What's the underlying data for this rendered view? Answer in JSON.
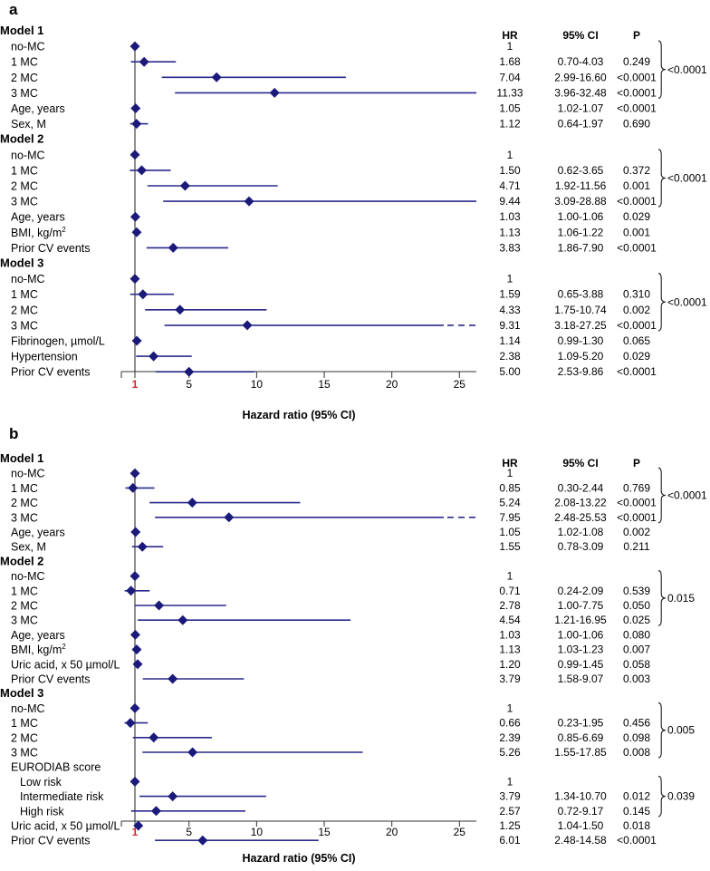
{
  "chart_data": [
    {
      "type": "forest",
      "panel": "a",
      "colors": {
        "marker": "#1b1a7a",
        "line": "#2a2a8c",
        "axis": "#333333",
        "one_tick": "#d42a2a"
      },
      "columns": {
        "hr": "HR",
        "ci": "95% CI",
        "p": "P"
      },
      "xlabel": "Hazard ratio (95% CI)",
      "xlim": [
        0.1,
        26
      ],
      "ticks": [
        {
          "v": 1,
          "label": "1"
        },
        {
          "v": 5,
          "label": "5"
        },
        {
          "v": 10,
          "label": "10"
        },
        {
          "v": 15,
          "label": "15"
        },
        {
          "v": 20,
          "label": "20"
        },
        {
          "v": 25,
          "label": "25"
        }
      ],
      "rows": [
        {
          "kind": "model",
          "label": "Model 1"
        },
        {
          "kind": "row",
          "label": "no-MC",
          "hr": 1,
          "hr_text": "1",
          "ci_text": "",
          "p_text": ""
        },
        {
          "kind": "row",
          "label": "1 MC",
          "hr": 1.68,
          "lo": 0.7,
          "hi": 4.03,
          "hr_text": "1.68",
          "ci_text": "0.70-4.03",
          "p_text": "0.249"
        },
        {
          "kind": "row",
          "label": "2 MC",
          "hr": 7.04,
          "lo": 2.99,
          "hi": 16.6,
          "hr_text": "7.04",
          "ci_text": "2.99-16.60",
          "p_text": "<0.0001"
        },
        {
          "kind": "row",
          "label": "3 MC",
          "hr": 11.33,
          "lo": 3.96,
          "hi": 32.48,
          "hr_text": "11.33",
          "ci_text": "3.96-32.48",
          "p_text": "<0.0001"
        },
        {
          "kind": "row",
          "label": "Age, years",
          "hr": 1.05,
          "lo": 1.02,
          "hi": 1.07,
          "hr_text": "1.05",
          "ci_text": "1.02-1.07",
          "p_text": "<0.0001"
        },
        {
          "kind": "row",
          "label": "Sex, M",
          "hr": 1.12,
          "lo": 0.64,
          "hi": 1.97,
          "hr_text": "1.12",
          "ci_text": "0.64-1.97",
          "p_text": "0.690"
        },
        {
          "kind": "model",
          "label": "Model 2"
        },
        {
          "kind": "row",
          "label": "no-MC",
          "hr": 1,
          "hr_text": "1",
          "ci_text": "",
          "p_text": ""
        },
        {
          "kind": "row",
          "label": "1 MC",
          "hr": 1.5,
          "lo": 0.62,
          "hi": 3.65,
          "hr_text": "1.50",
          "ci_text": "0.62-3.65",
          "p_text": "0.372"
        },
        {
          "kind": "row",
          "label": "2 MC",
          "hr": 4.71,
          "lo": 1.92,
          "hi": 11.56,
          "hr_text": "4.71",
          "ci_text": "1.92-11.56",
          "p_text": "0.001"
        },
        {
          "kind": "row",
          "label": "3 MC",
          "hr": 9.44,
          "lo": 3.09,
          "hi": 28.88,
          "hr_text": "9.44",
          "ci_text": "3.09-28.88",
          "p_text": "<0.0001"
        },
        {
          "kind": "row",
          "label": "Age, years",
          "hr": 1.03,
          "lo": 1.0,
          "hi": 1.06,
          "hr_text": "1.03",
          "ci_text": "1.00-1.06",
          "p_text": "0.029"
        },
        {
          "kind": "row",
          "label": "BMI, kg/m",
          "sup": "2",
          "hr": 1.13,
          "lo": 1.06,
          "hi": 1.22,
          "hr_text": "1.13",
          "ci_text": "1.06-1.22",
          "p_text": "0.001"
        },
        {
          "kind": "row",
          "label": "Prior CV events",
          "hr": 3.83,
          "lo": 1.86,
          "hi": 7.9,
          "hr_text": "3.83",
          "ci_text": "1.86-7.90",
          "p_text": "<0.0001"
        },
        {
          "kind": "model",
          "label": "Model 3"
        },
        {
          "kind": "row",
          "label": "no-MC",
          "hr": 1,
          "hr_text": "1",
          "ci_text": "",
          "p_text": ""
        },
        {
          "kind": "row",
          "label": "1 MC",
          "hr": 1.59,
          "lo": 0.65,
          "hi": 3.88,
          "hr_text": "1.59",
          "ci_text": "0.65-3.88",
          "p_text": "0.310"
        },
        {
          "kind": "row",
          "label": "2 MC",
          "hr": 4.33,
          "lo": 1.75,
          "hi": 10.74,
          "hr_text": "4.33",
          "ci_text": "1.75-10.74",
          "p_text": "0.002"
        },
        {
          "kind": "row",
          "label": "3 MC",
          "hr": 9.31,
          "lo": 3.18,
          "hi": 27.25,
          "hr_text": "9.31",
          "ci_text": "3.18-27.25",
          "p_text": "<0.0001",
          "dashed": true
        },
        {
          "kind": "row",
          "label": "Fibrinogen, µmol/L",
          "hr": 1.14,
          "lo": 0.99,
          "hi": 1.3,
          "hr_text": "1.14",
          "ci_text": "0.99-1.30",
          "p_text": "0.065"
        },
        {
          "kind": "row",
          "label": "Hypertension",
          "hr": 2.38,
          "lo": 1.09,
          "hi": 5.2,
          "hr_text": "2.38",
          "ci_text": "1.09-5.20",
          "p_text": "0.029"
        },
        {
          "kind": "row",
          "label": "Prior CV events",
          "hr": 5.0,
          "lo": 2.53,
          "hi": 9.86,
          "hr_text": "5.00",
          "ci_text": "2.53-9.86",
          "p_text": "<0.0001"
        }
      ],
      "groups": [
        {
          "from": 1,
          "to": 4,
          "p": "<0.0001"
        },
        {
          "from": 8,
          "to": 11,
          "p": "<0.0001"
        },
        {
          "from": 16,
          "to": 19,
          "p": "<0.0001"
        }
      ]
    },
    {
      "type": "forest",
      "panel": "b",
      "colors": {
        "marker": "#1b1a7a",
        "line": "#2a2a8c",
        "axis": "#333333",
        "one_tick": "#d42a2a"
      },
      "columns": {
        "hr": "HR",
        "ci": "95% CI",
        "p": "P"
      },
      "xlabel": "Hazard ratio (95% CI)",
      "xlim": [
        0.1,
        26
      ],
      "ticks": [
        {
          "v": 1,
          "label": "1"
        },
        {
          "v": 5,
          "label": "5"
        },
        {
          "v": 10,
          "label": "10"
        },
        {
          "v": 15,
          "label": "15"
        },
        {
          "v": 20,
          "label": "20"
        },
        {
          "v": 25,
          "label": "25"
        }
      ],
      "rows": [
        {
          "kind": "model",
          "label": "Model 1"
        },
        {
          "kind": "row",
          "label": "no-MC",
          "hr": 1,
          "hr_text": "1",
          "ci_text": "",
          "p_text": ""
        },
        {
          "kind": "row",
          "label": "1 MC",
          "hr": 0.85,
          "lo": 0.3,
          "hi": 2.44,
          "hr_text": "0.85",
          "ci_text": "0.30-2.44",
          "p_text": "0.769"
        },
        {
          "kind": "row",
          "label": "2 MC",
          "hr": 5.24,
          "lo": 2.08,
          "hi": 13.22,
          "hr_text": "5.24",
          "ci_text": "2.08-13.22",
          "p_text": "<0.0001"
        },
        {
          "kind": "row",
          "label": "3 MC",
          "hr": 7.95,
          "lo": 2.48,
          "hi": 25.53,
          "hr_text": "7.95",
          "ci_text": "2.48-25.53",
          "p_text": "<0.0001",
          "dashed": true
        },
        {
          "kind": "row",
          "label": "Age, years",
          "hr": 1.05,
          "lo": 1.02,
          "hi": 1.08,
          "hr_text": "1.05",
          "ci_text": "1.02-1.08",
          "p_text": "0.002"
        },
        {
          "kind": "row",
          "label": "Sex, M",
          "hr": 1.55,
          "lo": 0.78,
          "hi": 3.09,
          "hr_text": "1.55",
          "ci_text": "0.78-3.09",
          "p_text": "0.211"
        },
        {
          "kind": "model",
          "label": "Model 2"
        },
        {
          "kind": "row",
          "label": "no-MC",
          "hr": 1,
          "hr_text": "1",
          "ci_text": "",
          "p_text": ""
        },
        {
          "kind": "row",
          "label": "1 MC",
          "hr": 0.71,
          "lo": 0.24,
          "hi": 2.09,
          "hr_text": "0.71",
          "ci_text": "0.24-2.09",
          "p_text": "0.539"
        },
        {
          "kind": "row",
          "label": "2 MC",
          "hr": 2.78,
          "lo": 1.0,
          "hi": 7.75,
          "hr_text": "2.78",
          "ci_text": "1.00-7.75",
          "p_text": "0.050"
        },
        {
          "kind": "row",
          "label": "3 MC",
          "hr": 4.54,
          "lo": 1.21,
          "hi": 16.95,
          "hr_text": "4.54",
          "ci_text": "1.21-16.95",
          "p_text": "0.025"
        },
        {
          "kind": "row",
          "label": "Age, years",
          "hr": 1.03,
          "lo": 1.0,
          "hi": 1.06,
          "hr_text": "1.03",
          "ci_text": "1.00-1.06",
          "p_text": "0.080"
        },
        {
          "kind": "row",
          "label": "BMI, kg/m",
          "sup": "2",
          "hr": 1.13,
          "lo": 1.03,
          "hi": 1.23,
          "hr_text": "1.13",
          "ci_text": "1.03-1.23",
          "p_text": "0.007"
        },
        {
          "kind": "row",
          "label": "Uric acid, x 50 µmol/L",
          "hr": 1.2,
          "lo": 0.99,
          "hi": 1.45,
          "hr_text": "1.20",
          "ci_text": "0.99-1.45",
          "p_text": "0.058"
        },
        {
          "kind": "row",
          "label": "Prior CV events",
          "hr": 3.79,
          "lo": 1.58,
          "hi": 9.07,
          "hr_text": "3.79",
          "ci_text": "1.58-9.07",
          "p_text": "0.003"
        },
        {
          "kind": "model",
          "label": "Model 3"
        },
        {
          "kind": "row",
          "label": "no-MC",
          "hr": 1,
          "hr_text": "1",
          "ci_text": "",
          "p_text": ""
        },
        {
          "kind": "row",
          "label": "1 MC",
          "hr": 0.66,
          "lo": 0.23,
          "hi": 1.95,
          "hr_text": "0.66",
          "ci_text": "0.23-1.95",
          "p_text": "0.456"
        },
        {
          "kind": "row",
          "label": "2 MC",
          "hr": 2.39,
          "lo": 0.85,
          "hi": 6.69,
          "hr_text": "2.39",
          "ci_text": "0.85-6.69",
          "p_text": "0.098"
        },
        {
          "kind": "row",
          "label": "3 MC",
          "hr": 5.26,
          "lo": 1.55,
          "hi": 17.85,
          "hr_text": "5.26",
          "ci_text": "1.55-17.85",
          "p_text": "0.008"
        },
        {
          "kind": "row",
          "label": "EURODIAB score",
          "hr_text": "",
          "ci_text": "",
          "p_text": ""
        },
        {
          "kind": "row",
          "label": "Low risk",
          "indent": true,
          "hr": 1,
          "hr_text": "1",
          "ci_text": "",
          "p_text": ""
        },
        {
          "kind": "row",
          "label": "Intermediate risk",
          "indent": true,
          "hr": 3.79,
          "lo": 1.34,
          "hi": 10.7,
          "hr_text": "3.79",
          "ci_text": "1.34-10.70",
          "p_text": "0.012"
        },
        {
          "kind": "row",
          "label": "High risk",
          "indent": true,
          "hr": 2.57,
          "lo": 0.72,
          "hi": 9.17,
          "hr_text": "2.57",
          "ci_text": "0.72-9.17",
          "p_text": "0.145"
        },
        {
          "kind": "row",
          "label": "Uric acid, x 50 µmol/L",
          "hr": 1.25,
          "lo": 1.04,
          "hi": 1.5,
          "hr_text": "1.25",
          "ci_text": "1.04-1.50",
          "p_text": "0.018"
        },
        {
          "kind": "row",
          "label": "Prior CV events",
          "hr": 6.01,
          "lo": 2.48,
          "hi": 14.58,
          "hr_text": "6.01",
          "ci_text": "2.48-14.58",
          "p_text": "<0.0001"
        }
      ],
      "groups": [
        {
          "from": 1,
          "to": 4,
          "p": "<0.0001"
        },
        {
          "from": 8,
          "to": 11,
          "p": "0.015"
        },
        {
          "from": 17,
          "to": 20,
          "p": "0.005"
        },
        {
          "from": 22,
          "to": 24,
          "p": "0.039"
        }
      ]
    }
  ]
}
